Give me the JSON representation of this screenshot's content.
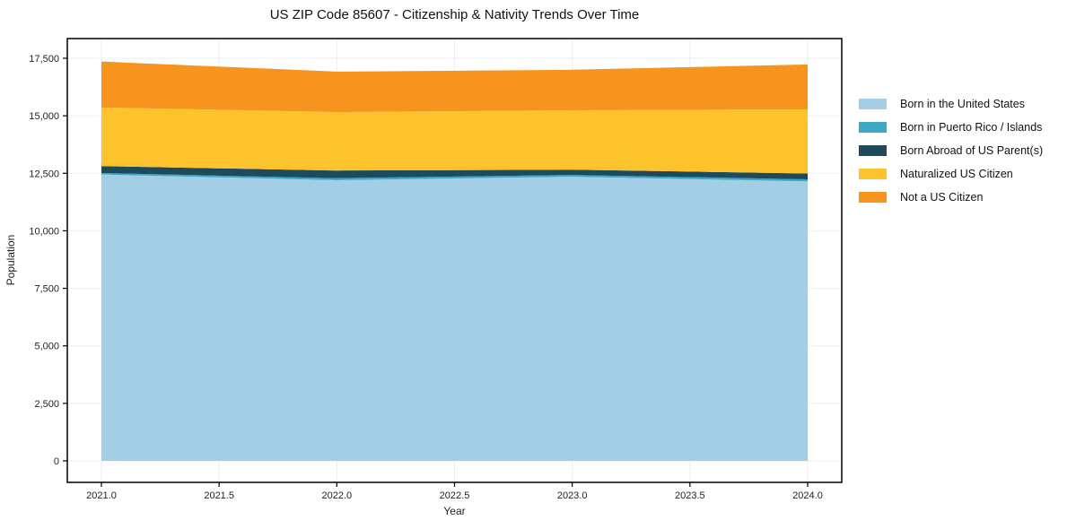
{
  "chart": {
    "title": "US ZIP Code 85607 - Citizenship & Nativity Trends Over Time",
    "xlabel": "Year",
    "ylabel": "Population"
  },
  "chart_data": {
    "type": "area",
    "stacked": true,
    "title": "US ZIP Code 85607 - Citizenship & Nativity Trends Over Time",
    "xlabel": "Year",
    "ylabel": "Population",
    "x": [
      2021,
      2022,
      2023,
      2024
    ],
    "series": [
      {
        "name": "Born in the United States",
        "color": "#A3CEE6",
        "values": [
          12450,
          12200,
          12350,
          12150
        ]
      },
      {
        "name": "Born in Puerto Rico / Islands",
        "color": "#3CA8C5",
        "values": [
          60,
          90,
          80,
          90
        ]
      },
      {
        "name": "Born Abroad of US Parent(s)",
        "color": "#1E4A5C",
        "values": [
          300,
          330,
          230,
          250
        ]
      },
      {
        "name": "Naturalized US Citizen",
        "color": "#FCC32D",
        "values": [
          2550,
          2540,
          2580,
          2790
        ]
      },
      {
        "name": "Not a US Citizen",
        "color": "#F7941E",
        "values": [
          2000,
          1760,
          1760,
          1950
        ]
      }
    ],
    "stacked_totals": [
      17360,
      16920,
      17000,
      17230
    ],
    "x_ticks": {
      "values": [
        2021.0,
        2021.5,
        2022.0,
        2022.5,
        2023.0,
        2023.5,
        2024.0
      ],
      "labels": [
        "2021.0",
        "2021.5",
        "2022.0",
        "2022.5",
        "2023.0",
        "2023.5",
        "2024.0"
      ]
    },
    "y_ticks": {
      "values": [
        0,
        2500,
        5000,
        7500,
        10000,
        12500,
        15000,
        17500
      ],
      "labels": [
        "0",
        "2,500",
        "5,000",
        "7,500",
        "10,000",
        "12,500",
        "15,000",
        "17,500"
      ]
    },
    "xlim": [
      2020.86,
      2024.14
    ],
    "ylim": [
      0,
      17500
    ],
    "grid": true,
    "legend_position": "right",
    "colors": {
      "grid": "#ebedef",
      "frame": "#000000",
      "tick_text": "#222222"
    }
  }
}
